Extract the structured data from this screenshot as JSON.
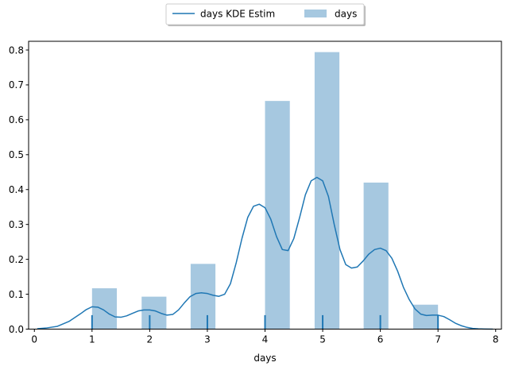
{
  "chart_data": {
    "type": "bar",
    "title": "",
    "xlabel": "days",
    "ylabel": "",
    "xlim": [
      -0.1,
      8.1
    ],
    "ylim": [
      0,
      0.825
    ],
    "x_ticks": [
      0,
      1,
      2,
      3,
      4,
      5,
      6,
      7,
      8
    ],
    "y_ticks": [
      0.0,
      0.1,
      0.2,
      0.3,
      0.4,
      0.5,
      0.6,
      0.7,
      0.8
    ],
    "x_tick_labels": [
      "0",
      "1",
      "2",
      "3",
      "4",
      "5",
      "6",
      "7",
      "8"
    ],
    "y_tick_labels": [
      "0.0",
      "0.1",
      "0.2",
      "0.3",
      "0.4",
      "0.5",
      "0.6",
      "0.7",
      "0.8"
    ],
    "grid": false,
    "legend": {
      "placement": "top-center, above plot",
      "entries": [
        {
          "label": "days KDE Estim",
          "kind": "line"
        },
        {
          "label": "days",
          "kind": "patch"
        }
      ]
    },
    "colors": {
      "kde_line": "#1f77b4",
      "bars": "#a6c8e0",
      "rug": "#1f77b4"
    },
    "series": [
      {
        "name": "days",
        "kind": "histogram",
        "bins": [
          {
            "x_start": 1.0,
            "x_end": 1.43,
            "value": 0.117
          },
          {
            "x_start": 1.86,
            "x_end": 2.29,
            "value": 0.093
          },
          {
            "x_start": 2.71,
            "x_end": 3.14,
            "value": 0.187
          },
          {
            "x_start": 4.0,
            "x_end": 4.43,
            "value": 0.654
          },
          {
            "x_start": 4.86,
            "x_end": 5.29,
            "value": 0.794
          },
          {
            "x_start": 5.71,
            "x_end": 6.14,
            "value": 0.42
          },
          {
            "x_start": 6.57,
            "x_end": 7.0,
            "value": 0.07
          }
        ]
      },
      {
        "name": "days KDE Estim",
        "kind": "line",
        "x": [
          0.05,
          0.2,
          0.4,
          0.6,
          0.8,
          0.9,
          1.0,
          1.1,
          1.2,
          1.3,
          1.4,
          1.5,
          1.6,
          1.7,
          1.8,
          1.9,
          2.0,
          2.1,
          2.2,
          2.3,
          2.4,
          2.5,
          2.6,
          2.7,
          2.8,
          2.9,
          3.0,
          3.1,
          3.2,
          3.3,
          3.4,
          3.5,
          3.6,
          3.7,
          3.8,
          3.9,
          4.0,
          4.1,
          4.2,
          4.3,
          4.4,
          4.5,
          4.6,
          4.7,
          4.8,
          4.9,
          5.0,
          5.1,
          5.2,
          5.3,
          5.4,
          5.5,
          5.6,
          5.7,
          5.8,
          5.9,
          6.0,
          6.1,
          6.2,
          6.3,
          6.4,
          6.5,
          6.6,
          6.7,
          6.8,
          6.9,
          7.0,
          7.1,
          7.2,
          7.3,
          7.4,
          7.5,
          7.6,
          7.7,
          7.8,
          7.95
        ],
        "y": [
          0.001,
          0.003,
          0.008,
          0.022,
          0.044,
          0.056,
          0.064,
          0.063,
          0.055,
          0.043,
          0.035,
          0.034,
          0.038,
          0.045,
          0.052,
          0.055,
          0.055,
          0.052,
          0.045,
          0.04,
          0.042,
          0.055,
          0.075,
          0.093,
          0.102,
          0.104,
          0.102,
          0.097,
          0.094,
          0.1,
          0.13,
          0.19,
          0.26,
          0.32,
          0.352,
          0.358,
          0.348,
          0.315,
          0.265,
          0.228,
          0.225,
          0.26,
          0.32,
          0.385,
          0.425,
          0.435,
          0.425,
          0.38,
          0.3,
          0.228,
          0.185,
          0.175,
          0.178,
          0.195,
          0.215,
          0.228,
          0.232,
          0.225,
          0.203,
          0.166,
          0.12,
          0.085,
          0.058,
          0.043,
          0.039,
          0.04,
          0.04,
          0.036,
          0.027,
          0.017,
          0.01,
          0.005,
          0.002,
          0.0008,
          0.0003,
          0.0001
        ]
      },
      {
        "name": "rug",
        "kind": "rug",
        "x": [
          1,
          2,
          3,
          4,
          5,
          6,
          7
        ],
        "height": 0.04
      }
    ]
  }
}
